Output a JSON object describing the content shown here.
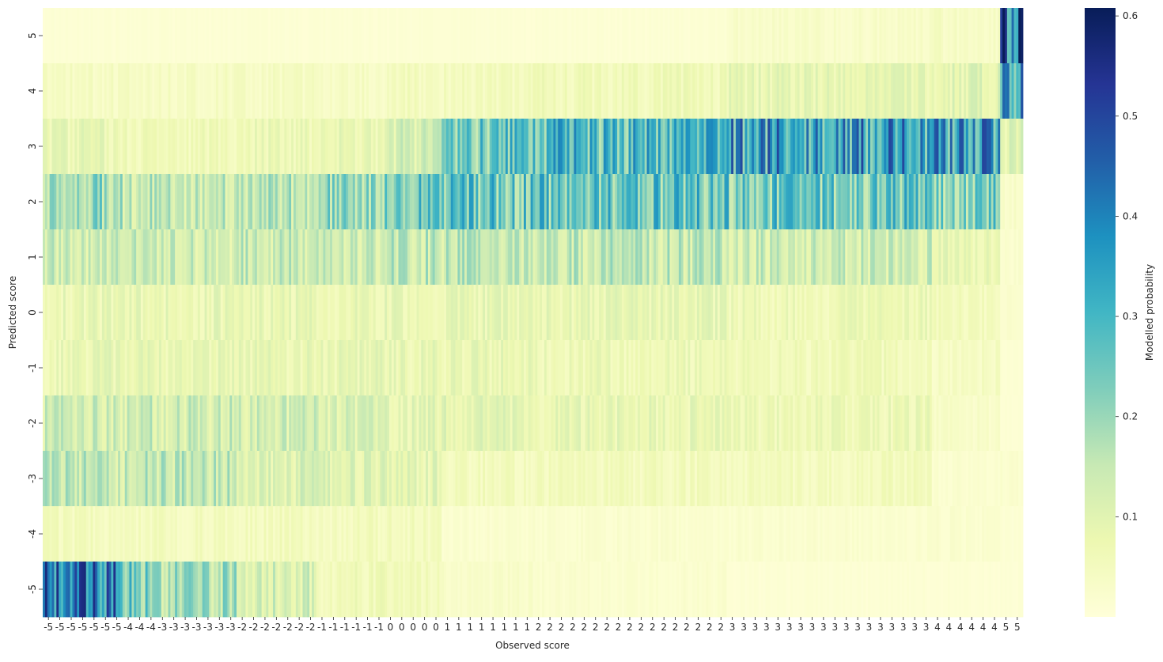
{
  "chart_data": {
    "type": "heatmap",
    "title": "",
    "xlabel": "Observed score",
    "ylabel": "Predicted score",
    "colorbar_label": "Modelled probability",
    "colormap": "YlGnBu",
    "color_range": [
      0.0,
      0.608
    ],
    "colorbar_ticks": [
      "0.1",
      "0.2",
      "0.3",
      "0.4",
      "0.5",
      "0.6"
    ],
    "colormap_stops": [
      "#ffffd9",
      "#edf8b1",
      "#c7e9b4",
      "#7fcdbb",
      "#41b6c4",
      "#1d91c0",
      "#225ea8",
      "#253494",
      "#081d58"
    ],
    "y_tick_labels": [
      "5",
      "4",
      "3",
      "2",
      "1",
      "0",
      "-1",
      "-2",
      "-3",
      "-4",
      "-5"
    ],
    "x_tick_labels": [
      "-5",
      "-5",
      "-5",
      "-5",
      "-5",
      "-5",
      "-5",
      "-4",
      "-4",
      "-4",
      "-3",
      "-3",
      "-3",
      "-3",
      "-3",
      "-3",
      "-3",
      "-2",
      "-2",
      "-2",
      "-2",
      "-2",
      "-2",
      "-2",
      "-1",
      "-1",
      "-1",
      "-1",
      "-1",
      "-1",
      "0",
      "0",
      "0",
      "0",
      "0",
      "1",
      "1",
      "1",
      "1",
      "1",
      "1",
      "1",
      "1",
      "2",
      "2",
      "2",
      "2",
      "2",
      "2",
      "2",
      "2",
      "2",
      "2",
      "2",
      "2",
      "2",
      "2",
      "2",
      "2",
      "2",
      "3",
      "3",
      "3",
      "3",
      "3",
      "3",
      "3",
      "3",
      "3",
      "3",
      "3",
      "3",
      "3",
      "3",
      "3",
      "3",
      "3",
      "3",
      "4",
      "4",
      "4",
      "4",
      "4",
      "4",
      "5",
      "5"
    ],
    "observed_groups": [
      "-5",
      "-4",
      "-3",
      "-2",
      "-1",
      "0",
      "1",
      "2",
      "3",
      "4",
      "5"
    ],
    "mean_probability_by_group": {
      "5": [
        0.01,
        0.01,
        0.01,
        0.01,
        0.01,
        0.01,
        0.01,
        0.01,
        0.03,
        0.04,
        0.45
      ],
      "4": [
        0.04,
        0.04,
        0.04,
        0.04,
        0.04,
        0.05,
        0.05,
        0.06,
        0.08,
        0.1,
        0.33
      ],
      "3": [
        0.08,
        0.06,
        0.06,
        0.07,
        0.08,
        0.12,
        0.25,
        0.28,
        0.35,
        0.35,
        0.1
      ],
      "2": [
        0.2,
        0.15,
        0.15,
        0.16,
        0.2,
        0.25,
        0.26,
        0.26,
        0.25,
        0.23,
        0.03
      ],
      "1": [
        0.13,
        0.13,
        0.13,
        0.14,
        0.14,
        0.15,
        0.15,
        0.15,
        0.13,
        0.08,
        0.02
      ],
      "0": [
        0.08,
        0.08,
        0.08,
        0.08,
        0.08,
        0.08,
        0.08,
        0.08,
        0.07,
        0.05,
        0.02
      ],
      "-1": [
        0.08,
        0.08,
        0.08,
        0.08,
        0.08,
        0.08,
        0.08,
        0.07,
        0.06,
        0.04,
        0.01
      ],
      "-2": [
        0.13,
        0.13,
        0.13,
        0.12,
        0.11,
        0.09,
        0.09,
        0.08,
        0.07,
        0.03,
        0.01
      ],
      "-3": [
        0.15,
        0.15,
        0.15,
        0.11,
        0.1,
        0.09,
        0.05,
        0.05,
        0.05,
        0.02,
        0.02
      ],
      "-4": [
        0.05,
        0.05,
        0.05,
        0.05,
        0.05,
        0.05,
        0.02,
        0.02,
        0.02,
        0.02,
        0.01
      ],
      "-5": [
        0.4,
        0.25,
        0.18,
        0.12,
        0.06,
        0.05,
        0.03,
        0.02,
        0.01,
        0.01,
        0.01
      ]
    }
  }
}
